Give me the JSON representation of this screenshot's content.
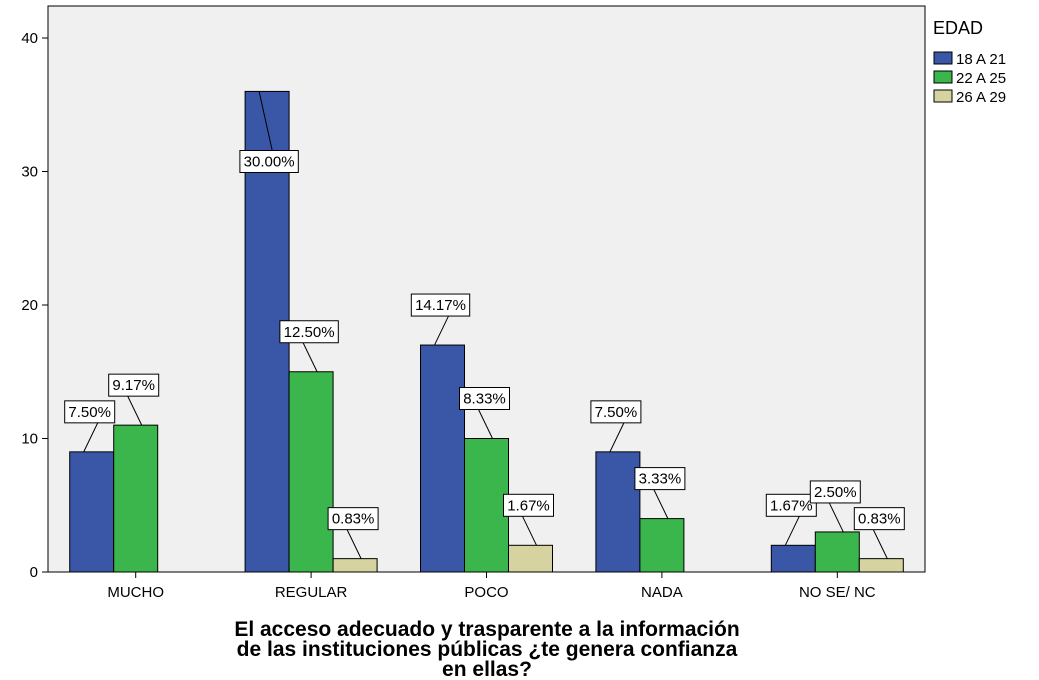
{
  "chart_data": {
    "type": "bar",
    "title": "",
    "xlabel_lines": [
      "El acceso adecuado y trasparente a la información",
      "de las instituciones públicas ¿te genera confianza",
      "en ellas?"
    ],
    "ylabel": "",
    "ylim": [
      0,
      40
    ],
    "yticks": [
      0,
      10,
      20,
      30,
      40
    ],
    "categories": [
      "MUCHO",
      "REGULAR",
      "POCO",
      "NADA",
      "NO SE/ NC"
    ],
    "legend": {
      "title": "EDAD",
      "position": "right"
    },
    "grid": false,
    "series": [
      {
        "name": "18 A 21",
        "color": "#3a56a7",
        "values": [
          9,
          36,
          17,
          9,
          2
        ],
        "labels": [
          "7.50%",
          "30.00%",
          "14.17%",
          "7.50%",
          "1.67%"
        ]
      },
      {
        "name": "22 A 25",
        "color": "#3ab64c",
        "values": [
          11,
          15,
          10,
          4,
          3
        ],
        "labels": [
          "9.17%",
          "12.50%",
          "8.33%",
          "3.33%",
          "2.50%"
        ]
      },
      {
        "name": "26 A 29",
        "color": "#d6d3a0",
        "values": [
          0,
          1,
          2,
          0,
          1
        ],
        "labels": [
          "",
          "0.83%",
          "1.67%",
          "",
          "0.83%"
        ]
      }
    ]
  }
}
